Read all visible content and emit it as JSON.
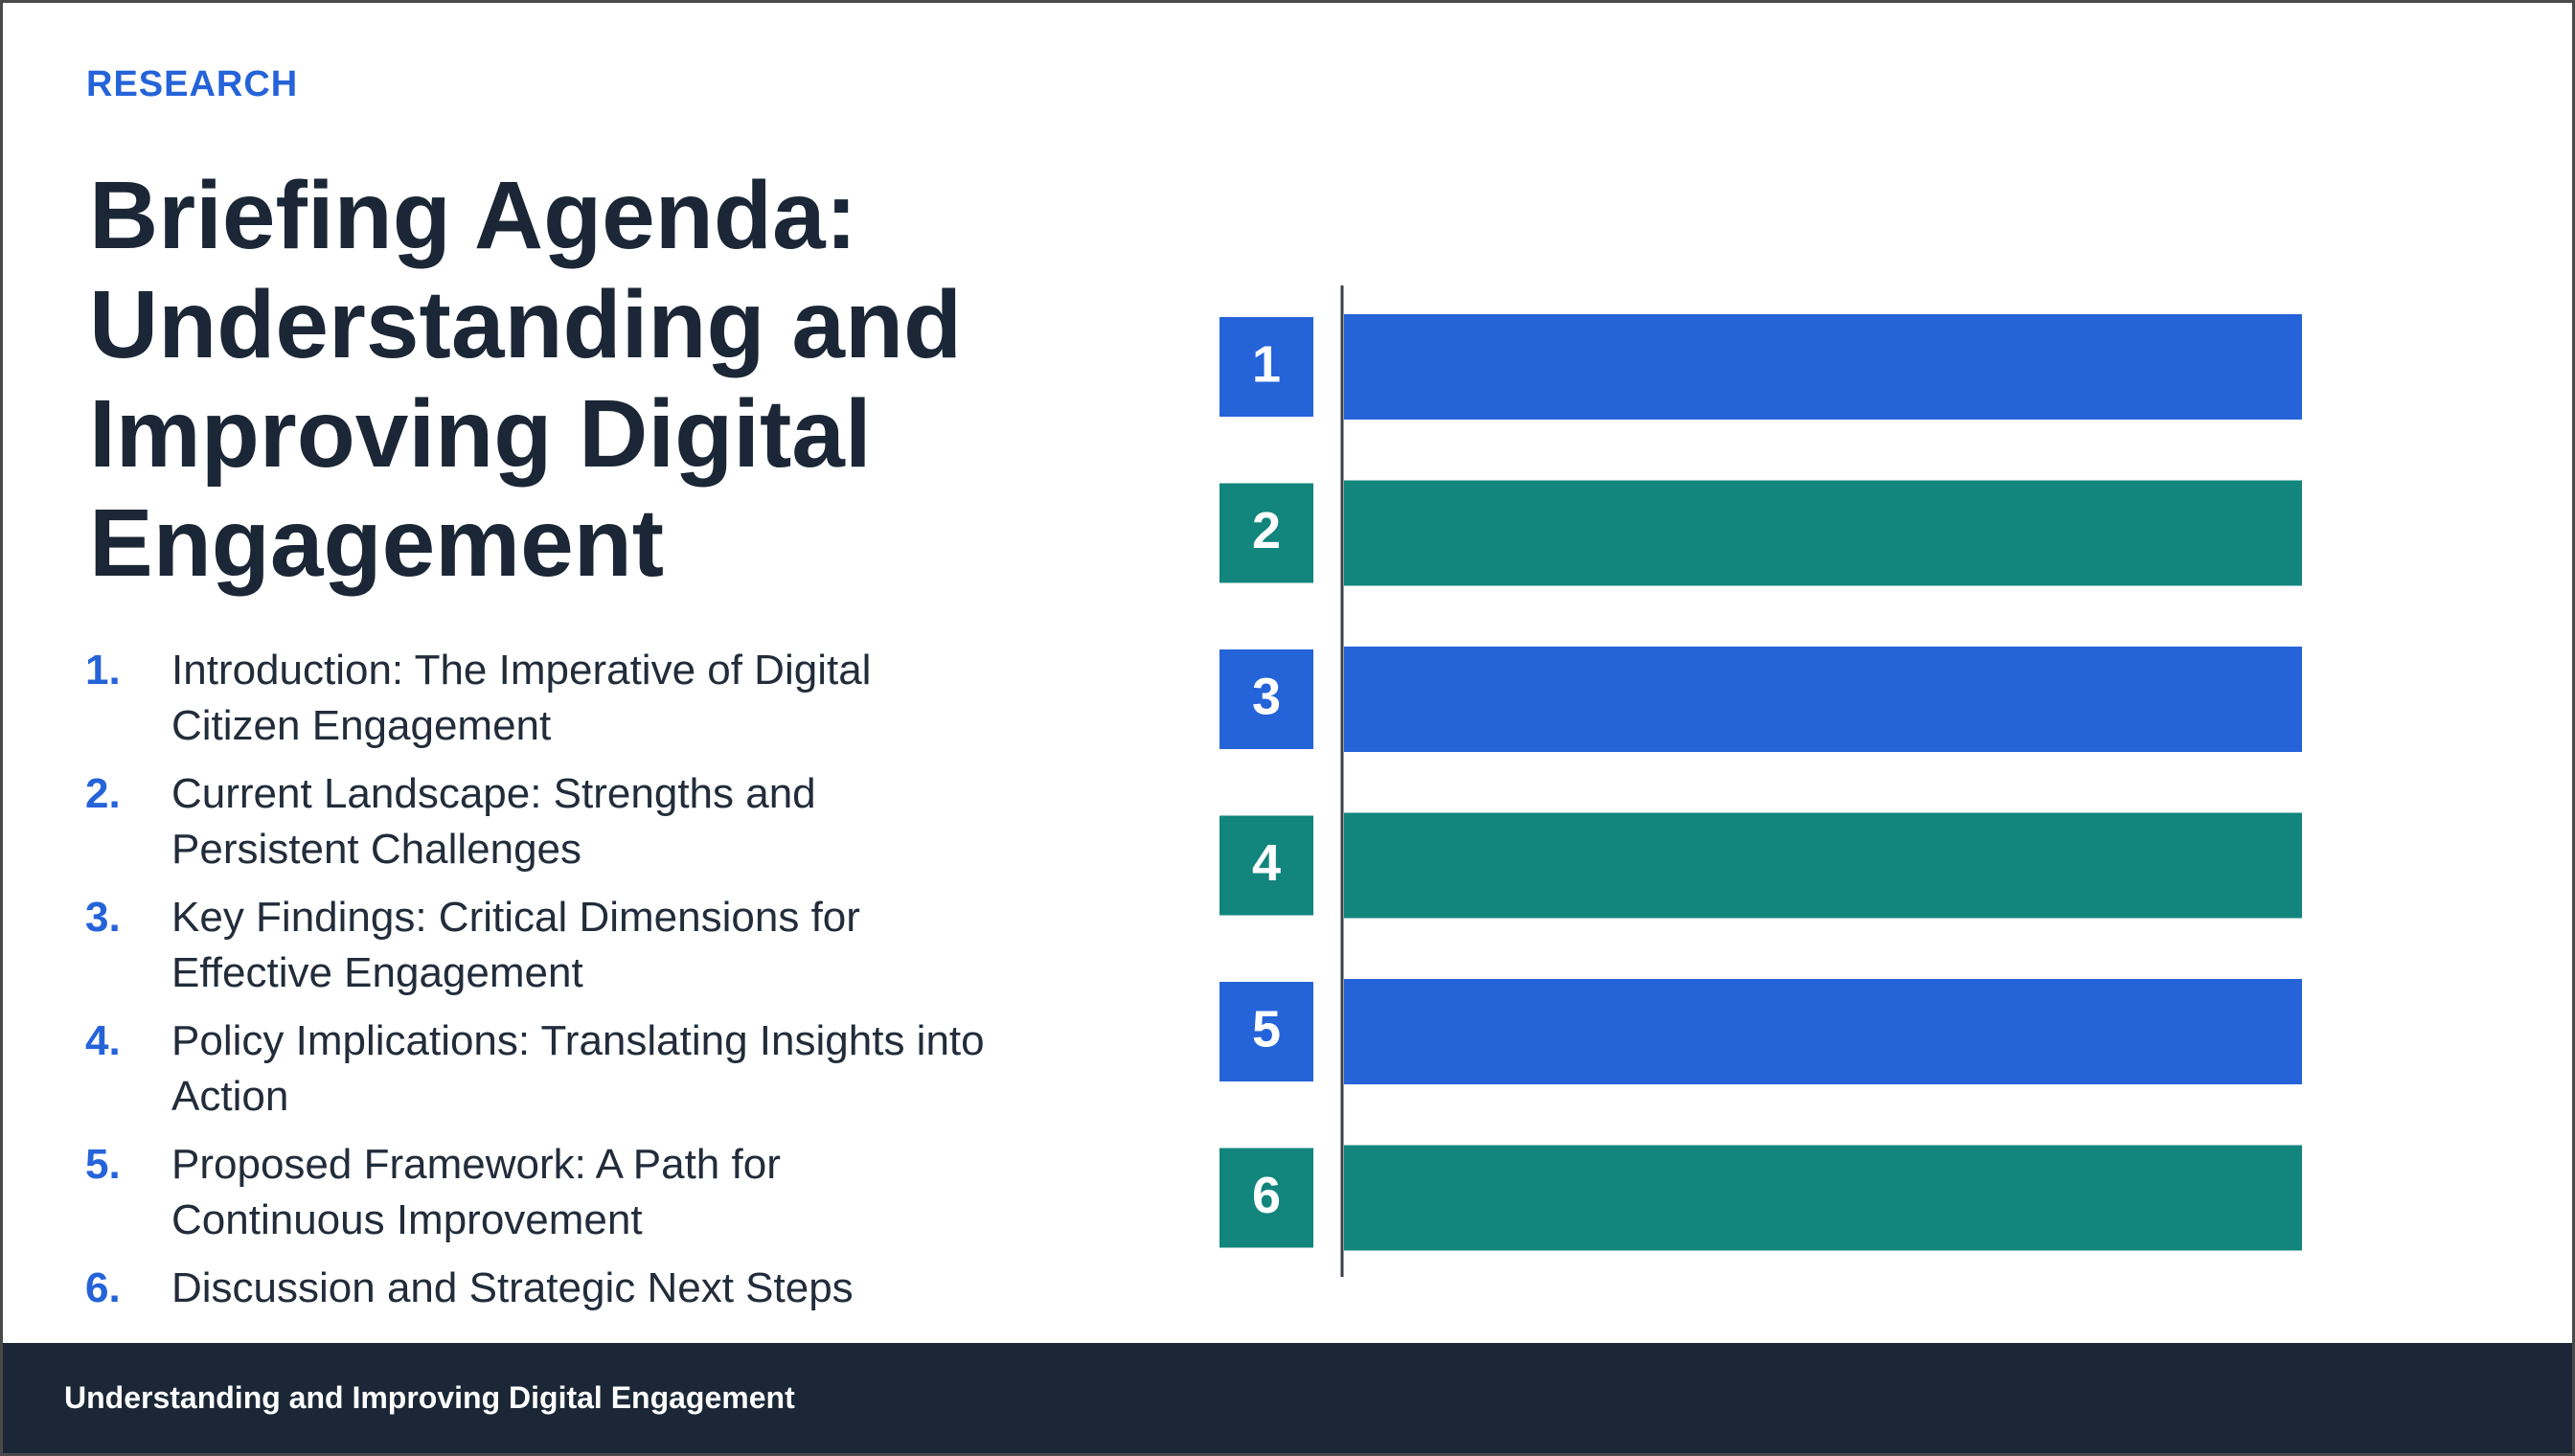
{
  "colors": {
    "accent": "#2563d9",
    "teal": "#12857d",
    "dark": "#1b2736",
    "text": "#222c3a"
  },
  "header": {
    "eyebrow": "RESEARCH",
    "title": "Briefing Agenda: Understanding and Improving Digital Engagement"
  },
  "agenda": [
    {
      "number": "1.",
      "text": "Introduction: The Imperative of Digital Citizen Engagement"
    },
    {
      "number": "2.",
      "text": "Current Landscape: Strengths and Persistent Challenges"
    },
    {
      "number": "3.",
      "text": "Key Findings: Critical Dimensions for Effective Engagement"
    },
    {
      "number": "4.",
      "text": "Policy Implications: Translating Insights into Action"
    },
    {
      "number": "5.",
      "text": "Proposed Framework: A Path for Continuous Improvement"
    },
    {
      "number": "6.",
      "text": "Discussion and Strategic Next Steps"
    }
  ],
  "chart_data": {
    "type": "bar",
    "categories": [
      "1",
      "2",
      "3",
      "4",
      "5",
      "6"
    ],
    "values": [
      1,
      1,
      1,
      1,
      1,
      1
    ],
    "bar_colors": [
      "#2563d9",
      "#12857d",
      "#2563d9",
      "#12857d",
      "#2563d9",
      "#12857d"
    ]
  },
  "footer": {
    "text": "Understanding and Improving Digital Engagement"
  }
}
